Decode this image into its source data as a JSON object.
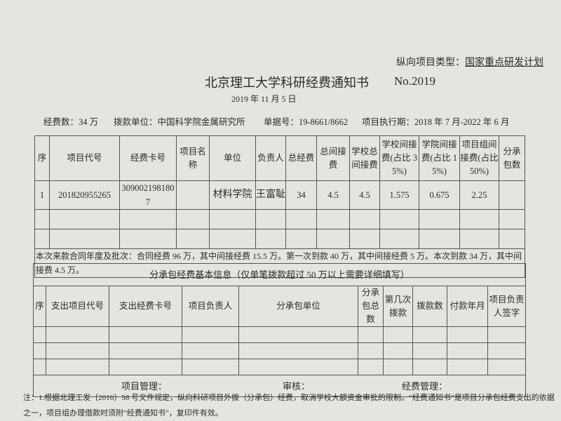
{
  "project_type": {
    "label": "纵向项目类型：",
    "value": "国家重点研发计划"
  },
  "title": "北京理工大学科研经费通知书",
  "number": "No.2019",
  "date": "2019 年 11 月 5 日",
  "info": {
    "funds": "经费数：34 万",
    "payer": "拨款单位：中国科学院金属研究所",
    "receipt": "单据号：19-8661/8662",
    "period": "项目执行期：2018 年 7 月-2022 年 6 月"
  },
  "main_table": {
    "headers": [
      "序",
      "项目代号",
      "经费卡号",
      "项目名称",
      "单位",
      "负责人",
      "总经费",
      "总间接费",
      "学校总间接费",
      "学校间接费(占比 35%)",
      "学院间接费(占比 15%)",
      "项目组间接费(占比 50%)",
      "分承包数"
    ],
    "rows": [
      [
        "1",
        "201820955265",
        "3090021981807",
        "",
        "材料学院",
        "王富耻",
        "34",
        "4.5",
        "4.5",
        "1.575",
        "0.675",
        "2.25",
        ""
      ]
    ],
    "note": "本次来款合同年度及批次：合同经费 96 万，其中间接经费 15.5 万。第一次到款 40 万，其中间接经费 5 万。本次到款 34 万，其中间接费 4.5 万。"
  },
  "sub_table": {
    "title": "分承包经费基本信息（仅单笔拨款超过 50 万以上需要详细填写）",
    "headers": [
      "序",
      "支出项目代号",
      "支出经费卡号",
      "项目负责人",
      "分承包单位",
      "分承包总数",
      "第几次拨款",
      "拨款数",
      "付款年月",
      "项目负责人签字"
    ]
  },
  "signatures": {
    "manager": "项目管理：",
    "review": "审核：",
    "finance": "经费管理："
  },
  "footnote": [
    "注：1.根据北理工发〔2016〕58 号文件规定，纵向科研项目外拨（分承包）经费，取消学校大额资金审批的限制。“经费通知书”是项目分承包经费支出的依据",
    "之一，项目组办理借款时须附“经费通知书”，复印件有效。"
  ]
}
